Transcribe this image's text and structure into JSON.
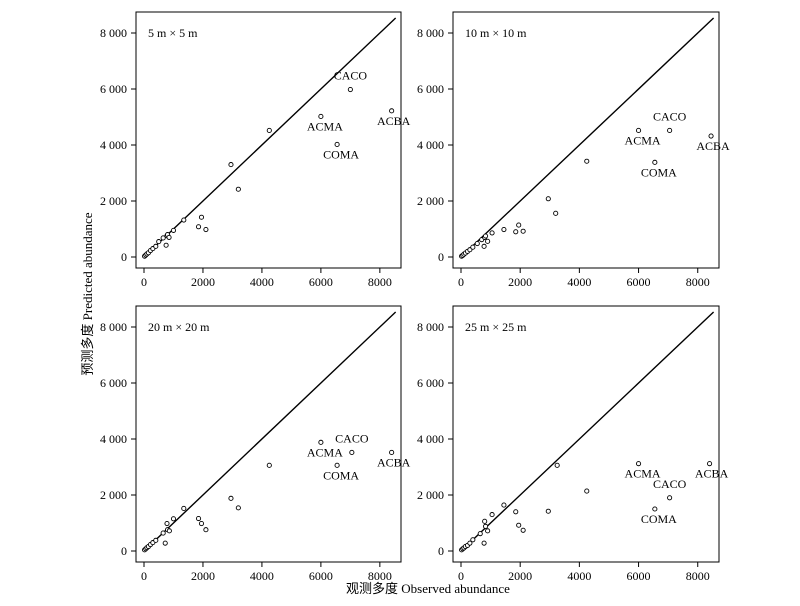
{
  "figure": {
    "ylabel": "预测多度 Predicted abundance",
    "xlabel": "观测多度 Observed abundance"
  },
  "chart_data": [
    {
      "type": "scatter",
      "title": "5 m × 5 m",
      "xlim": [
        0,
        8500
      ],
      "ylim": [
        0,
        8500
      ],
      "xticks": [
        0,
        2000,
        4000,
        6000,
        8000
      ],
      "xtick_labels": [
        "0",
        "2000",
        "4000",
        "6000",
        "8000"
      ],
      "yticks": [
        0,
        2000,
        4000,
        6000,
        8000
      ],
      "ytick_labels": [
        "0",
        "2 000",
        "4 000",
        "6 000",
        "8 000"
      ],
      "reference_line": "1:1",
      "points": [
        {
          "x": 20,
          "y": 30
        },
        {
          "x": 60,
          "y": 70
        },
        {
          "x": 100,
          "y": 110
        },
        {
          "x": 150,
          "y": 150
        },
        {
          "x": 220,
          "y": 230
        },
        {
          "x": 300,
          "y": 300
        },
        {
          "x": 400,
          "y": 380
        },
        {
          "x": 500,
          "y": 550
        },
        {
          "x": 650,
          "y": 680
        },
        {
          "x": 750,
          "y": 420
        },
        {
          "x": 780,
          "y": 760
        },
        {
          "x": 800,
          "y": 800
        },
        {
          "x": 850,
          "y": 700
        },
        {
          "x": 1000,
          "y": 950
        },
        {
          "x": 1350,
          "y": 1320
        },
        {
          "x": 1850,
          "y": 1080
        },
        {
          "x": 1950,
          "y": 1420
        },
        {
          "x": 2100,
          "y": 980
        },
        {
          "x": 2950,
          "y": 3300
        },
        {
          "x": 3200,
          "y": 2420
        },
        {
          "x": 4250,
          "y": 4520
        },
        {
          "x": 6000,
          "y": 5020
        },
        {
          "x": 7000,
          "y": 5980
        },
        {
          "x": 8400,
          "y": 5220
        },
        {
          "x": 6550,
          "y": 4020
        }
      ],
      "annotations": [
        {
          "text": "CACO",
          "x": 7000,
          "y": 5980
        },
        {
          "text": "ACMA",
          "x": 6000,
          "y": 5020
        },
        {
          "text": "ACBA",
          "x": 8400,
          "y": 5220
        },
        {
          "text": "COMA",
          "x": 6550,
          "y": 4020
        }
      ]
    },
    {
      "type": "scatter",
      "title": "10 m × 10 m",
      "xlim": [
        0,
        8500
      ],
      "ylim": [
        0,
        8500
      ],
      "xticks": [
        0,
        2000,
        4000,
        6000,
        8000
      ],
      "xtick_labels": [
        "0",
        "2000",
        "4000",
        "6000",
        "8000"
      ],
      "yticks": [
        0,
        2000,
        4000,
        6000,
        8000
      ],
      "ytick_labels": [
        "0",
        "2 000",
        "4 000",
        "6 000",
        "8 000"
      ],
      "reference_line": "1:1",
      "points": [
        {
          "x": 20,
          "y": 30
        },
        {
          "x": 60,
          "y": 60
        },
        {
          "x": 100,
          "y": 100
        },
        {
          "x": 150,
          "y": 140
        },
        {
          "x": 220,
          "y": 200
        },
        {
          "x": 300,
          "y": 260
        },
        {
          "x": 400,
          "y": 350
        },
        {
          "x": 550,
          "y": 480
        },
        {
          "x": 700,
          "y": 620
        },
        {
          "x": 780,
          "y": 380
        },
        {
          "x": 800,
          "y": 700
        },
        {
          "x": 830,
          "y": 750
        },
        {
          "x": 900,
          "y": 560
        },
        {
          "x": 1050,
          "y": 860
        },
        {
          "x": 1450,
          "y": 980
        },
        {
          "x": 1850,
          "y": 900
        },
        {
          "x": 1950,
          "y": 1140
        },
        {
          "x": 2100,
          "y": 920
        },
        {
          "x": 2950,
          "y": 2080
        },
        {
          "x": 3200,
          "y": 1560
        },
        {
          "x": 4250,
          "y": 3420
        },
        {
          "x": 6000,
          "y": 4520
        },
        {
          "x": 7050,
          "y": 4520
        },
        {
          "x": 8450,
          "y": 4320
        },
        {
          "x": 6550,
          "y": 3380
        }
      ],
      "annotations": [
        {
          "text": "CACO",
          "x": 7050,
          "y": 4520
        },
        {
          "text": "ACMA",
          "x": 6000,
          "y": 4520
        },
        {
          "text": "ACBA",
          "x": 8450,
          "y": 4320
        },
        {
          "text": "COMA",
          "x": 6550,
          "y": 3380
        }
      ]
    },
    {
      "type": "scatter",
      "title": "20 m × 20 m",
      "xlim": [
        0,
        8500
      ],
      "ylim": [
        0,
        8500
      ],
      "xticks": [
        0,
        2000,
        4000,
        6000,
        8000
      ],
      "xtick_labels": [
        "0",
        "2000",
        "4000",
        "6000",
        "8000"
      ],
      "yticks": [
        0,
        2000,
        4000,
        6000,
        8000
      ],
      "ytick_labels": [
        "0",
        "2 000",
        "4 000",
        "6 000",
        "8 000"
      ],
      "reference_line": "1:1",
      "points": [
        {
          "x": 20,
          "y": 40
        },
        {
          "x": 60,
          "y": 80
        },
        {
          "x": 100,
          "y": 120
        },
        {
          "x": 150,
          "y": 160
        },
        {
          "x": 220,
          "y": 230
        },
        {
          "x": 300,
          "y": 300
        },
        {
          "x": 400,
          "y": 380
        },
        {
          "x": 650,
          "y": 640
        },
        {
          "x": 720,
          "y": 280
        },
        {
          "x": 780,
          "y": 980
        },
        {
          "x": 800,
          "y": 760
        },
        {
          "x": 860,
          "y": 720
        },
        {
          "x": 1000,
          "y": 1150
        },
        {
          "x": 1350,
          "y": 1520
        },
        {
          "x": 1850,
          "y": 1160
        },
        {
          "x": 1950,
          "y": 980
        },
        {
          "x": 2100,
          "y": 760
        },
        {
          "x": 2950,
          "y": 1880
        },
        {
          "x": 3200,
          "y": 1540
        },
        {
          "x": 4250,
          "y": 3060
        },
        {
          "x": 6000,
          "y": 3880
        },
        {
          "x": 7050,
          "y": 3520
        },
        {
          "x": 8400,
          "y": 3520
        },
        {
          "x": 6550,
          "y": 3060
        }
      ],
      "annotations": [
        {
          "text": "CACO",
          "x": 7050,
          "y": 3520
        },
        {
          "text": "ACMA",
          "x": 6000,
          "y": 3880
        },
        {
          "text": "ACBA",
          "x": 8400,
          "y": 3520
        },
        {
          "text": "COMA",
          "x": 6550,
          "y": 3060
        }
      ]
    },
    {
      "type": "scatter",
      "title": "25 m × 25 m",
      "xlim": [
        0,
        8500
      ],
      "ylim": [
        0,
        8500
      ],
      "xticks": [
        0,
        2000,
        4000,
        6000,
        8000
      ],
      "xtick_labels": [
        "0",
        "2000",
        "4000",
        "6000",
        "8000"
      ],
      "yticks": [
        0,
        2000,
        4000,
        6000,
        8000
      ],
      "ytick_labels": [
        "0",
        "2 000",
        "4 000",
        "6 000",
        "8 000"
      ],
      "reference_line": "1:1",
      "points": [
        {
          "x": 20,
          "y": 40
        },
        {
          "x": 60,
          "y": 80
        },
        {
          "x": 100,
          "y": 110
        },
        {
          "x": 150,
          "y": 160
        },
        {
          "x": 220,
          "y": 200
        },
        {
          "x": 300,
          "y": 280
        },
        {
          "x": 400,
          "y": 400
        },
        {
          "x": 650,
          "y": 620
        },
        {
          "x": 780,
          "y": 280
        },
        {
          "x": 800,
          "y": 1060
        },
        {
          "x": 830,
          "y": 880
        },
        {
          "x": 900,
          "y": 720
        },
        {
          "x": 1050,
          "y": 1300
        },
        {
          "x": 1450,
          "y": 1640
        },
        {
          "x": 1850,
          "y": 1400
        },
        {
          "x": 1950,
          "y": 920
        },
        {
          "x": 2100,
          "y": 740
        },
        {
          "x": 2950,
          "y": 1420
        },
        {
          "x": 3250,
          "y": 3060
        },
        {
          "x": 4250,
          "y": 2140
        },
        {
          "x": 6000,
          "y": 3120
        },
        {
          "x": 7050,
          "y": 1900
        },
        {
          "x": 8400,
          "y": 3120
        },
        {
          "x": 6550,
          "y": 1500
        }
      ],
      "annotations": [
        {
          "text": "CACO",
          "x": 7050,
          "y": 1900
        },
        {
          "text": "ACMA",
          "x": 6000,
          "y": 3120
        },
        {
          "text": "ACBA",
          "x": 8400,
          "y": 3120
        },
        {
          "text": "COMA",
          "x": 6550,
          "y": 1500
        }
      ]
    }
  ]
}
